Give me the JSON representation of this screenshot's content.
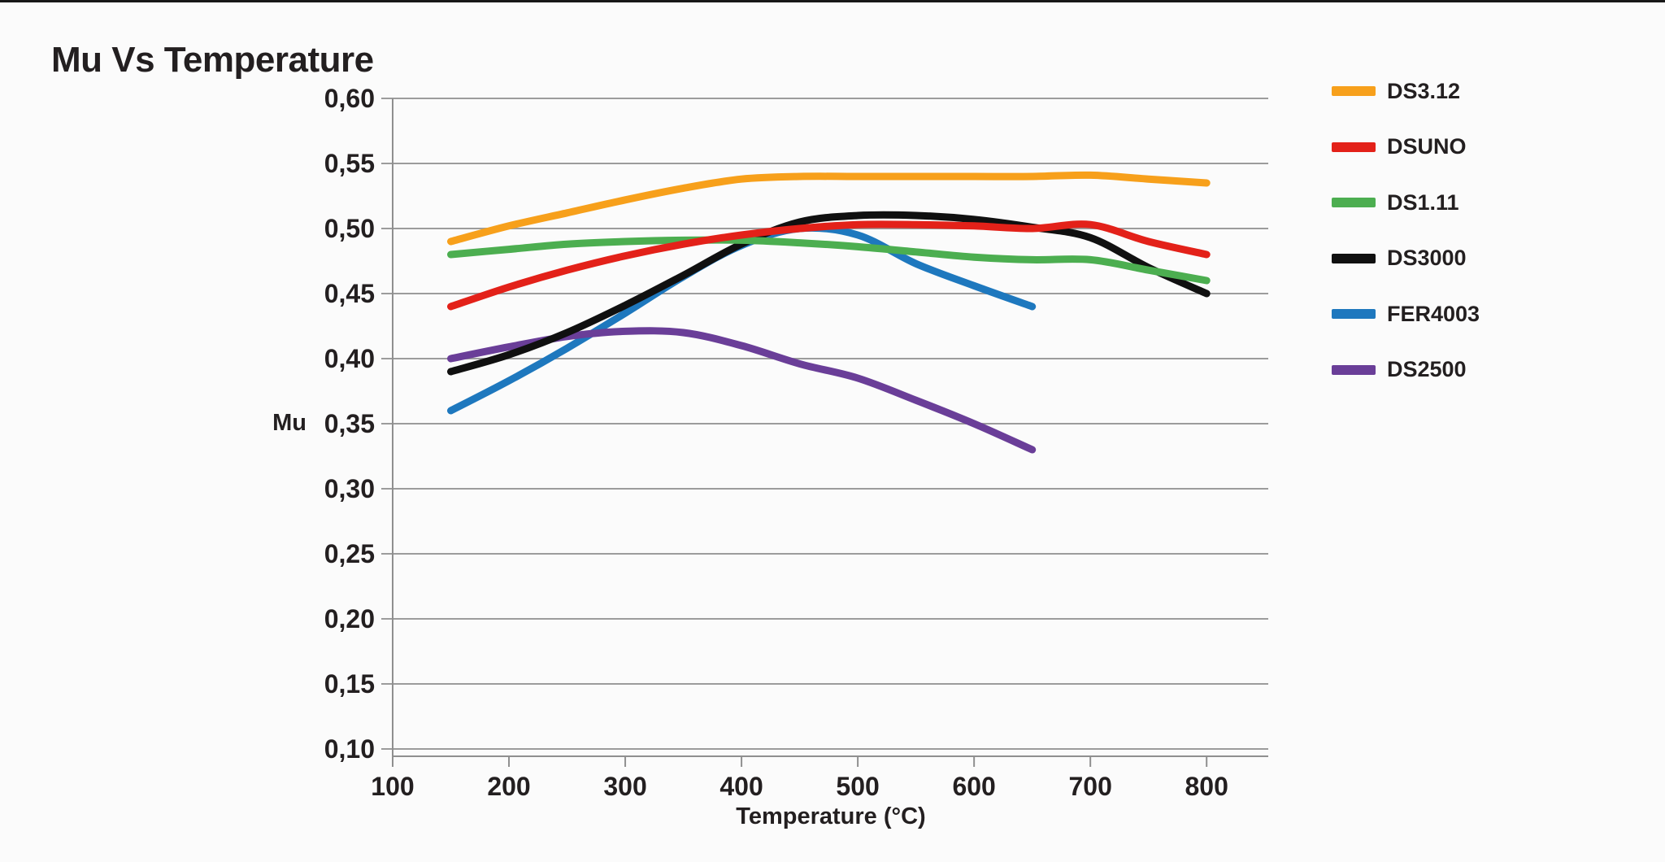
{
  "page": {
    "title": "Mu Vs Temperature"
  },
  "style": {
    "background": "#fbfbfb",
    "grid_color": "#9c9c9c",
    "axis_color": "#8f8f8f",
    "text_color": "#231f20"
  },
  "chart_data": {
    "type": "line",
    "title": "Mu Vs Temperature",
    "xlabel": "Temperature (°C)",
    "ylabel": "Mu",
    "xlim": [
      100,
      853
    ],
    "ylim": [
      0.1,
      0.6
    ],
    "grid": "horizontal",
    "legend_position": "right",
    "x_ticks": [
      {
        "value": 100,
        "label": "100"
      },
      {
        "value": 200,
        "label": "200"
      },
      {
        "value": 300,
        "label": "300"
      },
      {
        "value": 400,
        "label": "400"
      },
      {
        "value": 500,
        "label": "500"
      },
      {
        "value": 600,
        "label": "600"
      },
      {
        "value": 700,
        "label": "700"
      },
      {
        "value": 800,
        "label": "800"
      }
    ],
    "y_ticks": [
      {
        "value": 0.6,
        "label": "0,60"
      },
      {
        "value": 0.55,
        "label": "0,55"
      },
      {
        "value": 0.5,
        "label": "0,50"
      },
      {
        "value": 0.45,
        "label": "0,45"
      },
      {
        "value": 0.4,
        "label": "0,40"
      },
      {
        "value": 0.35,
        "label": "0,35"
      },
      {
        "value": 0.3,
        "label": "0,30"
      },
      {
        "value": 0.25,
        "label": "0,25"
      },
      {
        "value": 0.2,
        "label": "0,20"
      },
      {
        "value": 0.15,
        "label": "0,15"
      },
      {
        "value": 0.1,
        "label": "0,10"
      }
    ],
    "series": [
      {
        "name": "DS3.12",
        "color": "#f7a01b",
        "x": [
          150,
          200,
          250,
          300,
          350,
          400,
          450,
          500,
          550,
          600,
          650,
          700,
          750,
          800
        ],
        "y": [
          0.49,
          0.502,
          0.512,
          0.522,
          0.531,
          0.538,
          0.54,
          0.54,
          0.54,
          0.54,
          0.54,
          0.541,
          0.538,
          0.535
        ]
      },
      {
        "name": "DSUNO",
        "color": "#e32119",
        "x": [
          150,
          200,
          250,
          300,
          350,
          400,
          450,
          500,
          550,
          600,
          650,
          700,
          750,
          800
        ],
        "y": [
          0.44,
          0.455,
          0.468,
          0.479,
          0.488,
          0.495,
          0.5,
          0.503,
          0.503,
          0.502,
          0.5,
          0.503,
          0.49,
          0.48
        ]
      },
      {
        "name": "DS1.11",
        "color": "#4cae50",
        "x": [
          150,
          200,
          250,
          300,
          350,
          400,
          450,
          500,
          550,
          600,
          650,
          700,
          750,
          800
        ],
        "y": [
          0.48,
          0.484,
          0.488,
          0.49,
          0.491,
          0.491,
          0.489,
          0.486,
          0.482,
          0.478,
          0.476,
          0.476,
          0.468,
          0.46
        ]
      },
      {
        "name": "DS3000",
        "color": "#101010",
        "x": [
          150,
          200,
          250,
          300,
          350,
          400,
          450,
          500,
          550,
          600,
          650,
          700,
          750,
          800
        ],
        "y": [
          0.39,
          0.403,
          0.42,
          0.441,
          0.464,
          0.488,
          0.505,
          0.51,
          0.51,
          0.507,
          0.501,
          0.493,
          0.47,
          0.45
        ]
      },
      {
        "name": "FER4003",
        "color": "#1e78be",
        "x": [
          150,
          200,
          250,
          300,
          350,
          400,
          450,
          500,
          550,
          600,
          650
        ],
        "y": [
          0.36,
          0.383,
          0.408,
          0.435,
          0.463,
          0.487,
          0.5,
          0.495,
          0.473,
          0.456,
          0.44
        ]
      },
      {
        "name": "DS2500",
        "color": "#6a3e98",
        "x": [
          150,
          200,
          250,
          300,
          350,
          400,
          450,
          500,
          550,
          600,
          650
        ],
        "y": [
          0.4,
          0.409,
          0.417,
          0.421,
          0.42,
          0.41,
          0.396,
          0.385,
          0.368,
          0.35,
          0.33
        ]
      }
    ]
  }
}
